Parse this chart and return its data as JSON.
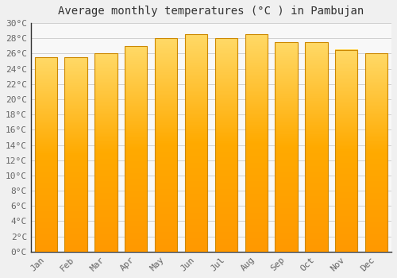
{
  "title": "Average monthly temperatures (°C ) in Pambujan",
  "months": [
    "Jan",
    "Feb",
    "Mar",
    "Apr",
    "May",
    "Jun",
    "Jul",
    "Aug",
    "Sep",
    "Oct",
    "Nov",
    "Dec"
  ],
  "values": [
    25.5,
    25.5,
    26.0,
    27.0,
    28.0,
    28.5,
    28.0,
    28.5,
    27.5,
    27.5,
    26.5,
    26.0
  ],
  "bar_color_main": "#FFAA00",
  "bar_color_top": "#FFD966",
  "bar_color_bottom": "#FF9900",
  "ylim": [
    0,
    30
  ],
  "ytick_step": 2,
  "background_color": "#f0f0f0",
  "plot_bg_color": "#f8f8f8",
  "grid_color": "#d0d0d0",
  "title_fontsize": 10,
  "tick_fontsize": 8,
  "font_family": "monospace"
}
